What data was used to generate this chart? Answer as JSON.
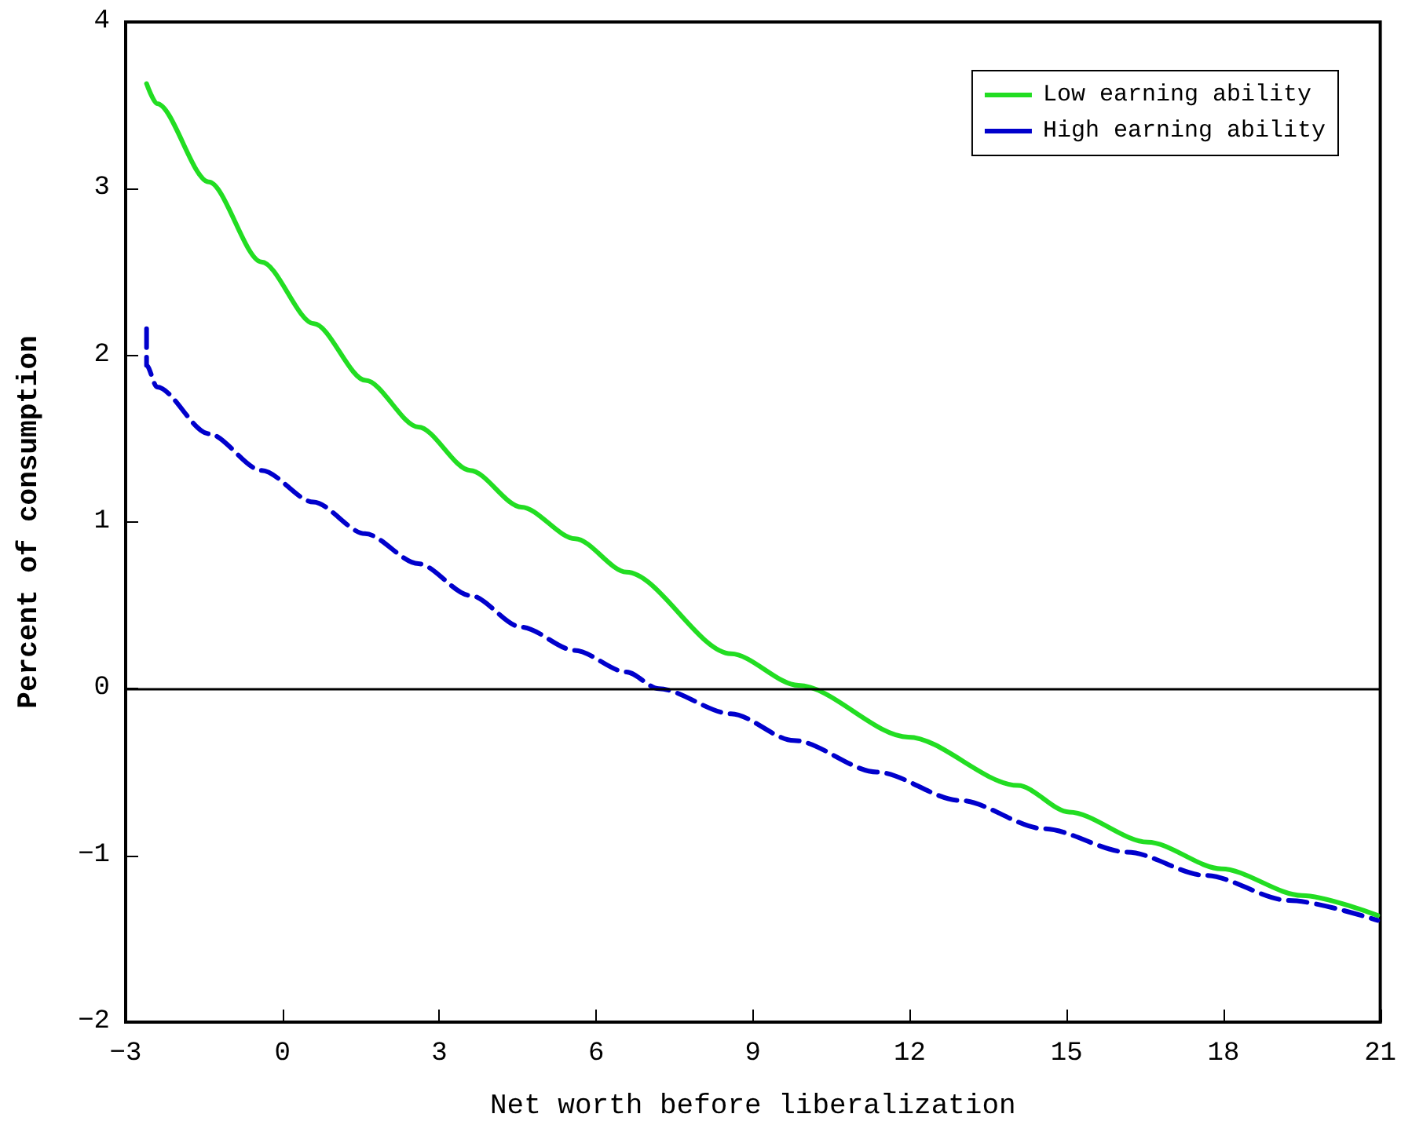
{
  "chart_data": {
    "type": "line",
    "xlabel": "Net worth before liberalization",
    "ylabel": "Percent of consumption",
    "xlim": [
      -3,
      21
    ],
    "xticks": [
      -3,
      0,
      3,
      6,
      9,
      12,
      15,
      18,
      21
    ],
    "ylim": [
      -2,
      4
    ],
    "yticks": [
      -2,
      -1,
      0,
      1,
      2,
      3,
      4
    ],
    "grid": false,
    "legend": "top right",
    "marker": "none",
    "ref_lines": [
      {
        "axis": "y",
        "value": 0,
        "color": "#000000",
        "line_style": "solid"
      }
    ],
    "series": [
      {
        "name": "Low earning ability",
        "color": "#22dd22",
        "line_style": "solid",
        "x": [
          -2.6,
          -2.4,
          -1.41,
          -0.4,
          0.6,
          1.59,
          2.6,
          3.59,
          4.57,
          5.6,
          6.58,
          8.58,
          9.87,
          11.97,
          14.07,
          15.05,
          16.55,
          17.96,
          19.5,
          20.95
        ],
        "values": [
          3.63,
          3.51,
          3.04,
          2.56,
          2.19,
          1.85,
          1.57,
          1.31,
          1.09,
          0.9,
          0.7,
          0.21,
          0.02,
          -0.29,
          -0.58,
          -0.74,
          -0.92,
          -1.08,
          -1.24,
          -1.36
        ]
      },
      {
        "name": "High earning ability",
        "color": "#0000cc",
        "line_style": "dashed",
        "x": [
          -2.6,
          -2.6,
          -2.4,
          -1.41,
          -0.4,
          0.59,
          1.58,
          2.6,
          3.59,
          4.57,
          5.59,
          6.58,
          7.2,
          8.58,
          9.78,
          11.37,
          12.96,
          14.57,
          16.16,
          17.66,
          19.25,
          20.95
        ],
        "values": [
          2.16,
          1.94,
          1.81,
          1.53,
          1.31,
          1.12,
          0.93,
          0.75,
          0.56,
          0.37,
          0.23,
          0.1,
          0,
          -0.15,
          -0.31,
          -0.5,
          -0.67,
          -0.84,
          -0.98,
          -1.12,
          -1.27,
          -1.39
        ]
      }
    ]
  }
}
